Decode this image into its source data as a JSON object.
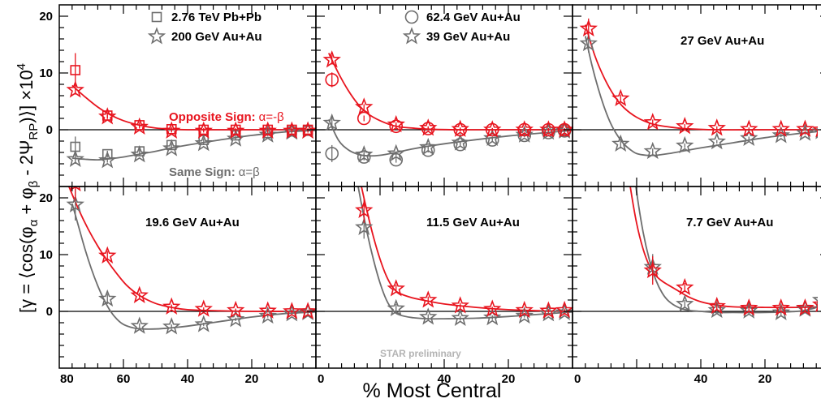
{
  "colors": {
    "opposite": "#e8141e",
    "same": "#6e6e6e",
    "axis": "#000000",
    "watermark": "#b4b4b4"
  },
  "xlabel": "% Most Central",
  "ylabel": "[γ = ⟨cos(φα + φβ - 2ΨRP)⟩] ×10⁴",
  "ylabel_parts": {
    "open": "[γ = ⟨cos(φ",
    "a": "α",
    "p1": " + φ",
    "b": "β",
    "p2": " - 2Ψ",
    "rp": "RP",
    "close": ")⟩] ×10",
    "exp": "4"
  },
  "annotations": {
    "opposite_sign": "Opposite Sign:",
    "opposite_rel": "α=-β",
    "same_sign": "Same Sign:",
    "same_rel": "α=β",
    "watermark": "STAR preliminary"
  },
  "chart_data": [
    {
      "type": "scatter",
      "panel": "top-left",
      "title": "",
      "xlim": [
        80,
        0
      ],
      "ylim": [
        -10,
        22
      ],
      "xticks": [
        80,
        60,
        40,
        20
      ],
      "yticks": [
        20,
        10,
        0
      ],
      "legend": [
        {
          "label": "2.76 TeV Pb+Pb",
          "marker": "square"
        },
        {
          "label": "200 GeV Au+Au",
          "marker": "star"
        }
      ],
      "series": [
        {
          "name": "2.76 TeV Pb+Pb",
          "charge": "opposite",
          "marker": "square",
          "x": [
            75,
            65,
            55,
            45,
            35,
            25,
            15,
            7.5,
            2.5
          ],
          "y": [
            10.5,
            2.5,
            0.8,
            0.1,
            0.0,
            0.0,
            0.0,
            0.0,
            0.0
          ],
          "err": [
            3,
            0.6,
            0.5,
            0.4,
            0.3,
            0.3,
            0.3,
            0.3,
            0.3
          ]
        },
        {
          "name": "200 GeV Au+Au",
          "charge": "opposite",
          "marker": "star",
          "x": [
            75,
            65,
            55,
            45,
            35,
            25,
            15,
            7.5,
            2.5
          ],
          "y": [
            7.0,
            2.3,
            0.5,
            -0.2,
            -0.2,
            -0.2,
            -0.2,
            -0.2,
            -0.2
          ],
          "err": [
            0.8,
            0.3,
            0.3,
            0.3,
            0.3,
            0.3,
            0.3,
            0.3,
            0.3
          ]
        },
        {
          "name": "2.76 TeV Pb+Pb",
          "charge": "same",
          "marker": "square",
          "x": [
            75,
            65,
            55,
            45,
            35,
            25,
            15,
            7.5,
            2.5
          ],
          "y": [
            -3.0,
            -4.3,
            -3.8,
            -2.7,
            -1.8,
            -1.0,
            -0.6,
            -0.3,
            -0.2
          ],
          "err": [
            1.8,
            0.6,
            0.4,
            0.3,
            0.3,
            0.3,
            0.3,
            0.3,
            0.3
          ]
        },
        {
          "name": "200 GeV Au+Au",
          "charge": "same",
          "marker": "star",
          "x": [
            75,
            65,
            55,
            45,
            35,
            25,
            15,
            7.5,
            2.5
          ],
          "y": [
            -5.2,
            -5.4,
            -4.4,
            -3.3,
            -2.4,
            -1.6,
            -0.9,
            -0.4,
            -0.2
          ],
          "err": [
            0.8,
            0.4,
            0.3,
            0.3,
            0.3,
            0.3,
            0.3,
            0.3,
            0.3
          ]
        }
      ],
      "fits": [
        {
          "charge": "opposite",
          "x": [
            76,
            72,
            68,
            64,
            60,
            55,
            50,
            45,
            40,
            30,
            20,
            10,
            0
          ],
          "y": [
            7.8,
            5.8,
            4.0,
            2.6,
            1.6,
            0.8,
            0.3,
            0.1,
            0.0,
            0.0,
            0.0,
            0.0,
            0.0
          ]
        },
        {
          "charge": "same",
          "x": [
            76,
            72,
            68,
            64,
            60,
            55,
            50,
            45,
            40,
            30,
            20,
            10,
            0
          ],
          "y": [
            -5.0,
            -5.2,
            -5.3,
            -5.1,
            -4.8,
            -4.3,
            -3.8,
            -3.2,
            -2.7,
            -1.8,
            -1.0,
            -0.4,
            -0.1
          ]
        }
      ]
    },
    {
      "type": "scatter",
      "panel": "top-middle",
      "title": "",
      "xlim": [
        80,
        0
      ],
      "ylim": [
        -10,
        22
      ],
      "legend": [
        {
          "label": "62.4 GeV Au+Au",
          "marker": "circle"
        },
        {
          "label": "39 GeV Au+Au",
          "marker": "star"
        }
      ],
      "series": [
        {
          "name": "62.4 GeV Au+Au",
          "charge": "opposite",
          "marker": "circle",
          "x": [
            75,
            65,
            55,
            45,
            35,
            25,
            15,
            7.5,
            2.5
          ],
          "y": [
            8.8,
            2.0,
            0.6,
            0.2,
            0.0,
            0.0,
            0.0,
            0.0,
            0.0
          ],
          "err": [
            1.3,
            0.5,
            0.4,
            0.3,
            0.3,
            0.3,
            0.3,
            0.3,
            0.3
          ]
        },
        {
          "name": "39 GeV Au+Au",
          "charge": "opposite",
          "marker": "star",
          "x": [
            75,
            65,
            55,
            45,
            35,
            25,
            15,
            7.5,
            2.5
          ],
          "y": [
            12.3,
            4.0,
            0.9,
            0.3,
            0.1,
            0.0,
            0.0,
            0.0,
            0.0
          ],
          "err": [
            0.8,
            0.5,
            0.4,
            0.3,
            0.3,
            0.3,
            0.3,
            0.3,
            0.3
          ]
        },
        {
          "name": "62.4 GeV Au+Au",
          "charge": "same",
          "marker": "circle",
          "x": [
            75,
            65,
            55,
            45,
            35,
            25,
            15,
            7.5,
            2.5
          ],
          "y": [
            -4.2,
            -4.8,
            -5.3,
            -3.6,
            -2.6,
            -1.8,
            -1.0,
            -0.5,
            -0.2
          ],
          "err": [
            1.5,
            0.6,
            0.5,
            0.4,
            0.3,
            0.3,
            0.3,
            0.3,
            0.3
          ]
        },
        {
          "name": "39 GeV Au+Au",
          "charge": "same",
          "marker": "star",
          "x": [
            75,
            65,
            55,
            45,
            35,
            25,
            15,
            7.5,
            2.5
          ],
          "y": [
            1.2,
            -4.4,
            -4.2,
            -3.1,
            -2.3,
            -1.5,
            -0.9,
            -0.4,
            -0.2
          ],
          "err": [
            1.0,
            0.6,
            0.4,
            0.3,
            0.3,
            0.3,
            0.3,
            0.3,
            0.3
          ]
        }
      ],
      "fits": [
        {
          "charge": "opposite",
          "x": [
            76,
            73,
            70,
            67,
            64,
            60,
            55,
            50,
            45,
            35,
            20,
            0
          ],
          "y": [
            13.5,
            10.0,
            7.0,
            4.6,
            2.9,
            1.6,
            0.6,
            0.3,
            0.1,
            0.0,
            0.0,
            0.0
          ]
        },
        {
          "charge": "same",
          "x": [
            76,
            73,
            70,
            67,
            64,
            60,
            55,
            50,
            45,
            35,
            20,
            0
          ],
          "y": [
            1.8,
            -1.8,
            -3.5,
            -4.3,
            -4.6,
            -4.5,
            -4.0,
            -3.4,
            -2.9,
            -2.1,
            -1.1,
            -0.1
          ]
        }
      ]
    },
    {
      "type": "scatter",
      "panel": "top-right",
      "title": "27 GeV Au+Au",
      "xlim": [
        80,
        0
      ],
      "ylim": [
        -10,
        22
      ],
      "series": [
        {
          "name": "27 GeV Au+Au",
          "charge": "opposite",
          "marker": "star",
          "x": [
            75,
            65,
            55,
            45,
            35,
            25,
            15,
            7.5,
            2.5
          ],
          "y": [
            17.8,
            5.5,
            1.3,
            0.6,
            0.3,
            0.1,
            0.1,
            0.1,
            0.0
          ],
          "err": [
            1.8,
            0.7,
            0.5,
            0.4,
            0.3,
            0.3,
            0.3,
            0.3,
            0.3
          ]
        },
        {
          "name": "27 GeV Au+Au",
          "charge": "same",
          "marker": "star",
          "x": [
            75,
            65,
            55,
            45,
            35,
            25,
            15,
            7.5,
            2.5
          ],
          "y": [
            15.2,
            -2.5,
            -3.8,
            -2.8,
            -2.1,
            -1.5,
            -1.0,
            -0.6,
            -0.3
          ],
          "err": [
            1.6,
            0.8,
            0.5,
            0.4,
            0.3,
            0.3,
            0.3,
            0.3,
            0.3
          ]
        }
      ],
      "fits": [
        {
          "charge": "opposite",
          "x": [
            76,
            73,
            70,
            67,
            64,
            60,
            55,
            50,
            45,
            35,
            20,
            0
          ],
          "y": [
            18.5,
            13.0,
            9.0,
            6.0,
            3.9,
            2.2,
            1.0,
            0.5,
            0.2,
            0.0,
            0.0,
            0.0
          ]
        },
        {
          "charge": "same",
          "x": [
            76,
            74,
            72,
            70,
            68,
            66,
            64,
            62,
            60,
            57,
            54,
            50,
            45,
            40,
            30,
            20,
            10,
            0
          ],
          "y": [
            16.5,
            11.5,
            7.3,
            3.8,
            1.0,
            -1.0,
            -2.5,
            -3.5,
            -4.2,
            -4.5,
            -4.5,
            -4.2,
            -3.7,
            -3.2,
            -2.3,
            -1.4,
            -0.7,
            -0.1
          ]
        }
      ]
    },
    {
      "type": "scatter",
      "panel": "bottom-left",
      "title": "19.6 GeV Au+Au",
      "xlim": [
        80,
        0
      ],
      "ylim": [
        -10,
        22
      ],
      "series": [
        {
          "name": "19.6 GeV Au+Au",
          "charge": "opposite",
          "marker": "star",
          "x": [
            75,
            65,
            55,
            45,
            35,
            25,
            15,
            7.5,
            2.5
          ],
          "y": [
            22.5,
            9.8,
            2.8,
            0.8,
            0.4,
            0.2,
            0.1,
            0.0,
            0.0
          ],
          "err": [
            3,
            0.8,
            0.5,
            0.4,
            0.3,
            0.3,
            0.3,
            0.3,
            0.3
          ]
        },
        {
          "name": "19.6 GeV Au+Au",
          "charge": "same",
          "marker": "star",
          "x": [
            75,
            65,
            55,
            45,
            35,
            25,
            15,
            7.5,
            2.5
          ],
          "y": [
            18.8,
            2.2,
            -2.6,
            -2.7,
            -2.3,
            -1.4,
            -0.8,
            -0.4,
            -0.2
          ],
          "err": [
            2.8,
            0.9,
            0.5,
            0.4,
            0.3,
            0.3,
            0.3,
            0.3,
            0.3
          ]
        }
      ],
      "fits": [
        {
          "charge": "opposite",
          "x": [
            77,
            74,
            71,
            68,
            65,
            62,
            59,
            55,
            50,
            45,
            40,
            30,
            20,
            0
          ],
          "y": [
            22.0,
            18.0,
            14.5,
            11.5,
            8.9,
            6.6,
            4.6,
            2.8,
            1.4,
            0.7,
            0.3,
            0.1,
            0.0,
            0.0
          ]
        },
        {
          "charge": "same",
          "x": [
            76,
            74,
            72,
            70,
            68,
            66,
            64,
            62,
            60,
            57,
            54,
            50,
            45,
            40,
            30,
            20,
            10,
            0
          ],
          "y": [
            19.0,
            15.0,
            11.0,
            7.5,
            4.5,
            2.0,
            0.0,
            -1.4,
            -2.3,
            -2.9,
            -3.1,
            -3.1,
            -2.9,
            -2.6,
            -1.8,
            -1.0,
            -0.4,
            -0.1
          ]
        }
      ]
    },
    {
      "type": "scatter",
      "panel": "bottom-middle",
      "title": "11.5 GeV Au+Au",
      "xlim": [
        80,
        0
      ],
      "ylim": [
        -10,
        22
      ],
      "series": [
        {
          "name": "11.5 GeV Au+Au",
          "charge": "opposite",
          "marker": "star",
          "x": [
            65,
            55,
            45,
            35,
            25,
            15,
            7.5,
            2.5
          ],
          "y": [
            17.8,
            4.0,
            2.0,
            1.0,
            0.4,
            0.2,
            0.1,
            0.2
          ],
          "err": [
            2.2,
            0.7,
            0.6,
            0.5,
            0.4,
            0.3,
            0.3,
            0.3
          ]
        },
        {
          "name": "11.5 GeV Au+Au",
          "charge": "same",
          "marker": "star",
          "x": [
            65,
            55,
            45,
            35,
            25,
            15,
            7.5,
            2.5
          ],
          "y": [
            14.8,
            0.5,
            -1.0,
            -1.2,
            -1.1,
            -0.8,
            -0.4,
            -0.2
          ],
          "err": [
            2.0,
            0.8,
            0.5,
            0.4,
            0.4,
            0.3,
            0.3,
            0.3
          ]
        }
      ],
      "fits": [
        {
          "charge": "opposite",
          "x": [
            70,
            68,
            66,
            64,
            62,
            60,
            58,
            56,
            54,
            50,
            45,
            40,
            30,
            20,
            10,
            0
          ],
          "y": [
            34.0,
            28.0,
            22.5,
            17.5,
            13.0,
            9.2,
            6.2,
            4.2,
            3.2,
            2.4,
            1.8,
            1.3,
            0.7,
            0.3,
            0.1,
            0.0
          ]
        },
        {
          "charge": "same",
          "x": [
            70,
            68,
            66,
            64,
            62,
            60,
            58,
            56,
            54,
            50,
            45,
            40,
            30,
            20,
            10,
            0
          ],
          "y": [
            32.0,
            25.5,
            19.5,
            13.8,
            9.0,
            5.0,
            2.0,
            0.2,
            -0.6,
            -1.1,
            -1.3,
            -1.3,
            -1.2,
            -0.9,
            -0.5,
            -0.1
          ]
        }
      ]
    },
    {
      "type": "scatter",
      "panel": "bottom-right",
      "title": "7.7 GeV Au+Au",
      "xlim": [
        80,
        0
      ],
      "ylim": [
        -10,
        22
      ],
      "series": [
        {
          "name": "7.7 GeV Au+Au",
          "charge": "opposite",
          "marker": "star",
          "x": [
            55,
            45,
            35,
            25,
            15,
            7.5,
            2.5
          ],
          "y": [
            7.2,
            4.2,
            0.9,
            0.6,
            0.6,
            0.6,
            1.2
          ],
          "err": [
            2.5,
            0.8,
            0.6,
            0.5,
            0.5,
            0.5,
            0.6
          ]
        },
        {
          "name": "7.7 GeV Au+Au",
          "charge": "same",
          "marker": "star",
          "x": [
            55,
            45,
            35,
            25,
            15,
            7.5,
            2.5
          ],
          "y": [
            7.8,
            1.3,
            0.2,
            0.1,
            -0.2,
            0.4,
            2.0
          ],
          "err": [
            2.3,
            0.7,
            0.5,
            0.5,
            0.5,
            0.5,
            0.6
          ]
        }
      ],
      "fits": [
        {
          "charge": "opposite",
          "x": [
            64,
            62,
            60,
            58,
            56,
            54,
            52,
            50,
            47,
            44,
            40,
            35,
            30,
            20,
            10,
            0
          ],
          "y": [
            30.0,
            22.0,
            15.5,
            11.0,
            8.0,
            6.3,
            5.3,
            4.6,
            3.6,
            2.6,
            1.7,
            1.1,
            0.8,
            0.7,
            0.7,
            0.8
          ]
        },
        {
          "charge": "same",
          "x": [
            62,
            60,
            58,
            56,
            54,
            52,
            50,
            47,
            44,
            40,
            35,
            30,
            20,
            10,
            5,
            2,
            0
          ],
          "y": [
            30.0,
            21.0,
            14.0,
            9.0,
            5.5,
            3.2,
            1.8,
            0.7,
            0.2,
            0.0,
            -0.2,
            -0.2,
            -0.2,
            0.0,
            0.5,
            1.2,
            2.0
          ]
        }
      ]
    }
  ]
}
